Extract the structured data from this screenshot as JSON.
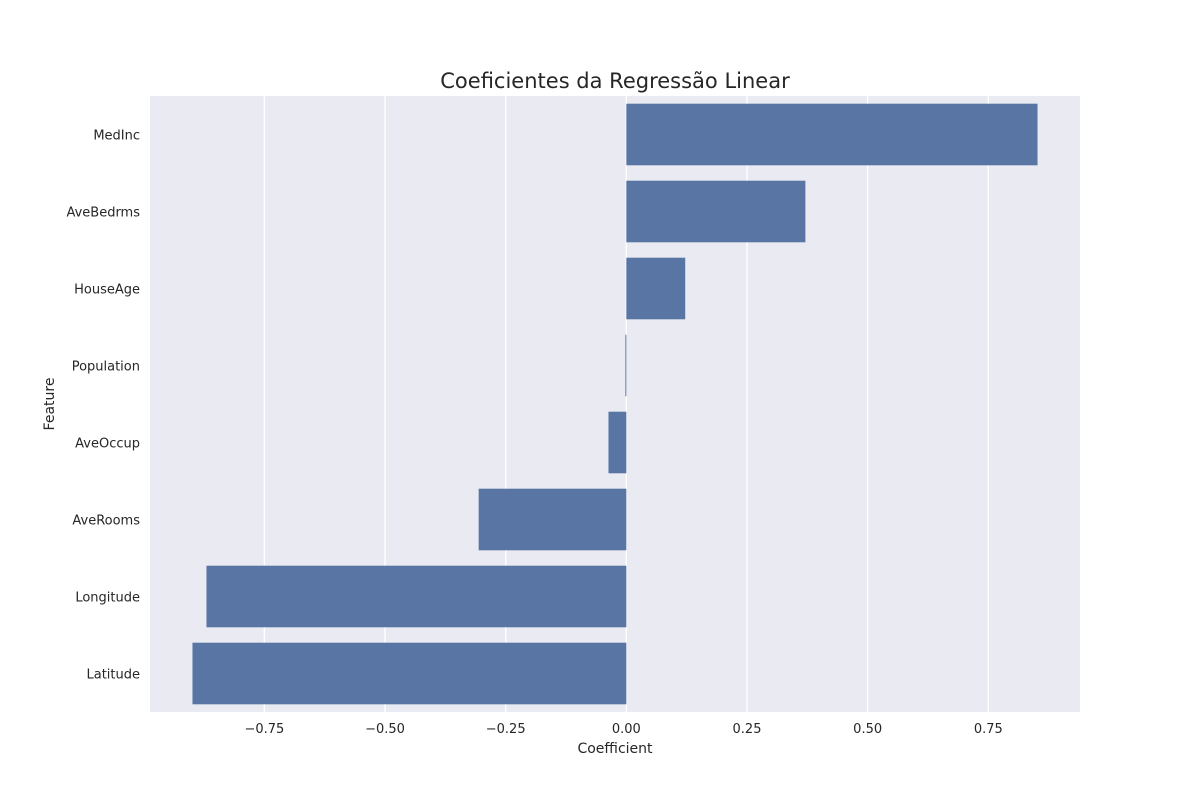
{
  "chart_data": {
    "type": "bar",
    "orientation": "horizontal",
    "title": "Coeficientes da Regressão Linear",
    "xlabel": "Coefficient",
    "ylabel": "Feature",
    "categories": [
      "MedInc",
      "AveBedrms",
      "HouseAge",
      "Population",
      "AveOccup",
      "AveRooms",
      "Longitude",
      "Latitude"
    ],
    "values": [
      0.852,
      0.371,
      0.122,
      -0.002,
      -0.037,
      -0.306,
      -0.87,
      -0.899
    ],
    "xlim": [
      -0.987,
      0.94
    ],
    "xticks": [
      -0.75,
      -0.5,
      -0.25,
      0.0,
      0.25,
      0.5,
      0.75
    ],
    "xtick_labels": [
      "−0.75",
      "−0.50",
      "−0.25",
      "0.00",
      "0.25",
      "0.50",
      "0.75"
    ],
    "grid": true,
    "colors": {
      "bar": "#5975a4",
      "plot_background": "#eaeaf2",
      "grid": "#ffffff"
    }
  }
}
